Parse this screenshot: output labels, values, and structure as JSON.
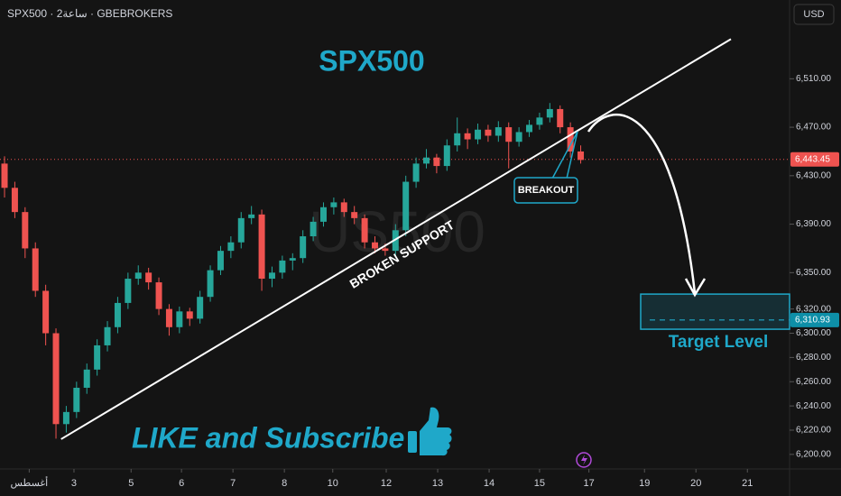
{
  "chart_data": {
    "type": "candlestick",
    "header": "SPX500 · 2ساعة · GBEBROKERS",
    "currency": "USD",
    "title": "SPX500",
    "watermark": "US500",
    "annotations": {
      "breakout": "BREAKOUT",
      "support": "BROKEN SUPPORT",
      "target": "Target Level",
      "cta": "LIKE and Subscribe"
    },
    "up_color": "#26a69a",
    "down_color": "#ef5350",
    "open": [
      6440,
      6420,
      6400,
      6370,
      6335,
      6300,
      6225,
      6235,
      6255,
      6270,
      6290,
      6305,
      6325,
      6345,
      6350,
      6342,
      6320,
      6305,
      6318,
      6312,
      6330,
      6352,
      6368,
      6375,
      6395,
      6398,
      6345,
      6350,
      6360,
      6362,
      6380,
      6392,
      6404,
      6408,
      6400,
      6395,
      6375,
      6370,
      6368,
      6385,
      6425,
      6440,
      6445,
      6438,
      6455,
      6465,
      6460,
      6468,
      6463,
      6470,
      6458,
      6466,
      6472,
      6478,
      6485,
      6470,
      6450
    ],
    "high": [
      6446,
      6425,
      6404,
      6375,
      6340,
      6304,
      6240,
      6260,
      6275,
      6295,
      6310,
      6330,
      6350,
      6356,
      6354,
      6346,
      6324,
      6322,
      6321,
      6335,
      6356,
      6372,
      6380,
      6400,
      6405,
      6402,
      6355,
      6364,
      6366,
      6385,
      6396,
      6408,
      6412,
      6411,
      6405,
      6398,
      6380,
      6374,
      6390,
      6430,
      6445,
      6452,
      6448,
      6460,
      6478,
      6469,
      6473,
      6472,
      6475,
      6474,
      6470,
      6476,
      6482,
      6490,
      6488,
      6474,
      6455
    ],
    "low": [
      6412,
      6395,
      6362,
      6330,
      6290,
      6213,
      6218,
      6230,
      6250,
      6265,
      6285,
      6300,
      6320,
      6340,
      6336,
      6315,
      6298,
      6300,
      6306,
      6308,
      6326,
      6348,
      6362,
      6370,
      6390,
      6335,
      6338,
      6345,
      6352,
      6358,
      6376,
      6388,
      6398,
      6396,
      6390,
      6370,
      6366,
      6364,
      6364,
      6380,
      6420,
      6436,
      6432,
      6434,
      6450,
      6452,
      6456,
      6458,
      6458,
      6436,
      6454,
      6462,
      6468,
      6474,
      6465,
      6445,
      6440
    ],
    "close": [
      6420,
      6400,
      6370,
      6335,
      6300,
      6225,
      6235,
      6255,
      6270,
      6290,
      6305,
      6325,
      6345,
      6350,
      6342,
      6320,
      6305,
      6318,
      6312,
      6330,
      6352,
      6368,
      6375,
      6395,
      6398,
      6345,
      6350,
      6360,
      6362,
      6380,
      6392,
      6404,
      6408,
      6400,
      6395,
      6375,
      6370,
      6368,
      6385,
      6425,
      6440,
      6445,
      6438,
      6455,
      6465,
      6460,
      6468,
      6463,
      6470,
      6458,
      6466,
      6472,
      6478,
      6485,
      6470,
      6450,
      6443
    ],
    "xlim": [
      -0.44,
      76.3
    ],
    "ylim": [
      6188,
      6575
    ],
    "xticks": [
      {
        "value": 2.4,
        "label": "أغسطس"
      },
      {
        "value": 6.75,
        "label": "3"
      },
      {
        "value": 12.3,
        "label": "5"
      },
      {
        "value": 17.2,
        "label": "6"
      },
      {
        "value": 22.2,
        "label": "7"
      },
      {
        "value": 27.2,
        "label": "8"
      },
      {
        "value": 31.9,
        "label": "10"
      },
      {
        "value": 37.1,
        "label": "12"
      },
      {
        "value": 42.1,
        "label": "13"
      },
      {
        "value": 47.1,
        "label": "14"
      },
      {
        "value": 52,
        "label": "15"
      },
      {
        "value": 56.8,
        "label": "17"
      },
      {
        "value": 62.2,
        "label": "19"
      },
      {
        "value": 67.2,
        "label": "20"
      },
      {
        "value": 72.2,
        "label": "21"
      }
    ],
    "yticks": [
      {
        "value": 6200,
        "label": "6,200.00"
      },
      {
        "value": 6220,
        "label": "6,220.00"
      },
      {
        "value": 6240,
        "label": "6,240.00"
      },
      {
        "value": 6260,
        "label": "6,260.00"
      },
      {
        "value": 6280,
        "label": "6,280.00"
      },
      {
        "value": 6300,
        "label": "6,300.00"
      },
      {
        "value": 6320,
        "label": "6,320.00"
      },
      {
        "value": 6350,
        "label": "6,350.00"
      },
      {
        "value": 6390,
        "label": "6,390.00"
      },
      {
        "value": 6430,
        "label": "6,430.00"
      },
      {
        "value": 6470,
        "label": "6,470.00"
      },
      {
        "value": 6510,
        "label": "6,510.00"
      }
    ],
    "last_price": {
      "value": 6443.45,
      "label": "6,443.45"
    },
    "target_price": {
      "value": 6310.93,
      "label": "6,310.93"
    },
    "target_zone": [
      6303.3,
      6332.3
    ],
    "support_line": {
      "x": [
        5.5,
        70.6
      ],
      "y": [
        6212.6,
        6542.7
      ]
    }
  }
}
